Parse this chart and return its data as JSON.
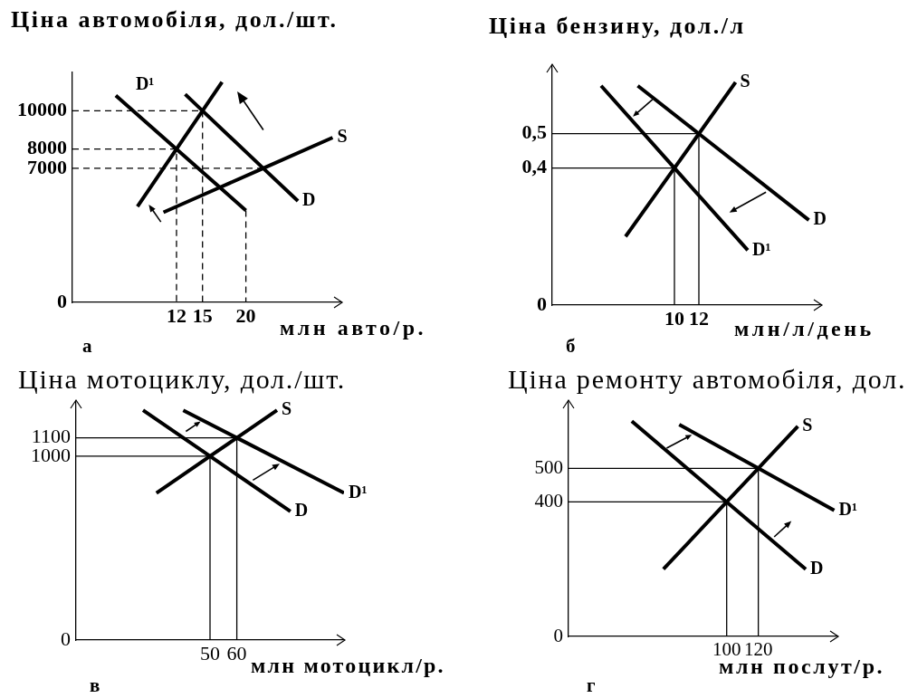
{
  "chart_data": [
    {
      "type": "line",
      "ylabel": "Ціна автомобіля, дол./шт.",
      "xlabel": "млн авто/р.",
      "annotations": [
        "а"
      ],
      "xlim": [
        0,
        31
      ],
      "ylim": [
        0,
        12000
      ],
      "xticks": [
        12,
        15,
        20
      ],
      "yticks": [
        0,
        7000,
        8000,
        10000
      ],
      "series": [
        {
          "name": "S",
          "color": "#000000",
          "x": [
            10.5,
            17,
            22,
            30
          ],
          "values": [
            4700,
            6000,
            7000,
            8600
          ]
        },
        {
          "name": "D",
          "color": "#000000",
          "x": [
            13,
            15,
            22,
            26
          ],
          "values": [
            10860,
            10000,
            7000,
            5290
          ]
        },
        {
          "name": "D¹",
          "color": "#000000",
          "x": [
            20,
            17,
            12,
            5
          ],
          "values": [
            4800,
            6000,
            8000,
            10800
          ]
        },
        {
          "color": "#000000",
          "x": [
            7.5,
            12,
            15,
            17.25
          ],
          "values": [
            5000,
            8000,
            10000,
            11500
          ]
        },
        {
          "type": "step",
          "color": "#000000",
          "line_style": "dashed",
          "x": [
            0,
            15
          ],
          "values": [
            10000,
            0
          ]
        },
        {
          "type": "step",
          "color": "#000000",
          "line_style": "dashed",
          "x": [
            0,
            12
          ],
          "values": [
            8000,
            0
          ]
        },
        {
          "type": "step",
          "color": "#000000",
          "line_style": "dashed",
          "x": [
            0,
            22
          ],
          "values": [
            7000,
            7000
          ]
        },
        {
          "type": "step",
          "color": "#000000",
          "line_style": "dashed",
          "x": [
            20,
            20
          ],
          "values": [
            4800,
            0
          ]
        }
      ]
    },
    {
      "type": "line",
      "ylabel": "Ціна бензину, дол./л",
      "xlabel": "млн/л/день",
      "annotations": [
        "б"
      ],
      "xlim": [
        0,
        22
      ],
      "ylim": [
        0,
        0.7
      ],
      "xticks": [
        10,
        12
      ],
      "yticks": [
        0,
        {
          "value": 0.4,
          "label": "0,4"
        },
        {
          "value": 0.5,
          "label": "0,5"
        }
      ],
      "series": [
        {
          "name": "S",
          "color": "#000000",
          "x": [
            6,
            10,
            12,
            15
          ],
          "values": [
            0.2,
            0.4,
            0.5,
            0.65
          ]
        },
        {
          "name": "D",
          "color": "#000000",
          "x": [
            7,
            12,
            21
          ],
          "values": [
            0.64,
            0.5,
            0.248
          ]
        },
        {
          "name": "D¹",
          "color": "#000000",
          "x": [
            4,
            10,
            16
          ],
          "values": [
            0.64,
            0.4,
            0.16
          ]
        },
        {
          "type": "step",
          "color": "#000000",
          "x": [
            0,
            12
          ],
          "values": [
            0.5,
            0
          ]
        },
        {
          "type": "step",
          "color": "#000000",
          "x": [
            0,
            10
          ],
          "values": [
            0.4,
            0
          ]
        }
      ]
    },
    {
      "type": "line",
      "ylabel": "Ціна мотоциклу, дол./шт.",
      "xlabel": "млн мотоцикл/р.",
      "annotations": [
        "в"
      ],
      "xlim": [
        0,
        100
      ],
      "ylim": [
        0,
        1300
      ],
      "xticks": [
        50,
        60
      ],
      "yticks": [
        0,
        1000,
        1100
      ],
      "series": [
        {
          "name": "S",
          "color": "#000000",
          "x": [
            30,
            50,
            60,
            75
          ],
          "values": [
            800,
            1000,
            1100,
            1250
          ]
        },
        {
          "name": "D",
          "color": "#000000",
          "x": [
            25,
            50,
            80
          ],
          "values": [
            1250,
            1000,
            700
          ]
        },
        {
          "name": "D¹",
          "color": "#000000",
          "x": [
            40,
            60,
            100
          ],
          "values": [
            1250,
            1100,
            800
          ]
        },
        {
          "type": "step",
          "color": "#000000",
          "x": [
            0,
            60
          ],
          "values": [
            1100,
            0
          ]
        },
        {
          "type": "step",
          "color": "#000000",
          "x": [
            0,
            50
          ],
          "values": [
            1000,
            0
          ]
        }
      ]
    },
    {
      "type": "line",
      "ylabel": "Ціна ремонту автомобіля, дол.",
      "xlabel": "млн послут/р.",
      "annotations": [
        "г"
      ],
      "xlim": [
        0,
        170
      ],
      "ylim": [
        0,
        700
      ],
      "xticks": [
        100,
        120
      ],
      "yticks": [
        0,
        400,
        500
      ],
      "series": [
        {
          "name": "S",
          "color": "#000000",
          "x": [
            60,
            100,
            120,
            145
          ],
          "values": [
            200,
            400,
            500,
            625
          ]
        },
        {
          "name": "D",
          "color": "#000000",
          "x": [
            40,
            100,
            150
          ],
          "values": [
            640,
            400,
            200
          ]
        },
        {
          "name": "D¹",
          "color": "#000000",
          "x": [
            70,
            120,
            168
          ],
          "values": [
            630,
            500,
            375
          ]
        },
        {
          "type": "step",
          "color": "#000000",
          "x": [
            0,
            120
          ],
          "values": [
            500,
            0
          ]
        },
        {
          "type": "step",
          "color": "#000000",
          "x": [
            0,
            100
          ],
          "values": [
            400,
            0
          ]
        }
      ]
    }
  ]
}
